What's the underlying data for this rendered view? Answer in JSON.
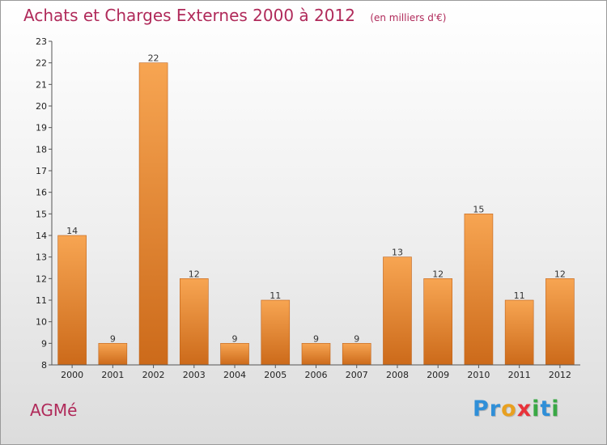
{
  "header": {
    "title": "Achats et Charges Externes 2000 à 2012",
    "unit": "(en milliers d'€)"
  },
  "footer": {
    "place": "AGMé",
    "logo_letters": [
      {
        "ch": "P",
        "color": "#2f8fd8"
      },
      {
        "ch": "r",
        "color": "#2f8fd8"
      },
      {
        "ch": "o",
        "color": "#e8a020"
      },
      {
        "ch": "x",
        "color": "#e8323a"
      },
      {
        "ch": "i",
        "color": "#39a845"
      },
      {
        "ch": "t",
        "color": "#2f8fd8"
      },
      {
        "ch": "i",
        "color": "#39a845"
      }
    ]
  },
  "colors": {
    "bar_light": "#f7a552",
    "bar_dark": "#cc6a1a",
    "axis": "#555555",
    "title": "#b02a5a"
  },
  "chart_data": {
    "type": "bar",
    "title": "Achats et Charges Externes 2000 à 2012",
    "subtitle": "(en milliers d'€)",
    "categories": [
      "2000",
      "2001",
      "2002",
      "2003",
      "2004",
      "2005",
      "2006",
      "2007",
      "2008",
      "2009",
      "2010",
      "2011",
      "2012"
    ],
    "values": [
      14,
      9,
      22,
      12,
      9,
      11,
      9,
      9,
      13,
      12,
      15,
      11,
      12
    ],
    "ylim": [
      8,
      23
    ],
    "yticks": [
      8,
      9,
      10,
      11,
      12,
      13,
      14,
      15,
      16,
      17,
      18,
      19,
      20,
      21,
      22,
      23
    ],
    "grid": false,
    "legend": "none"
  }
}
